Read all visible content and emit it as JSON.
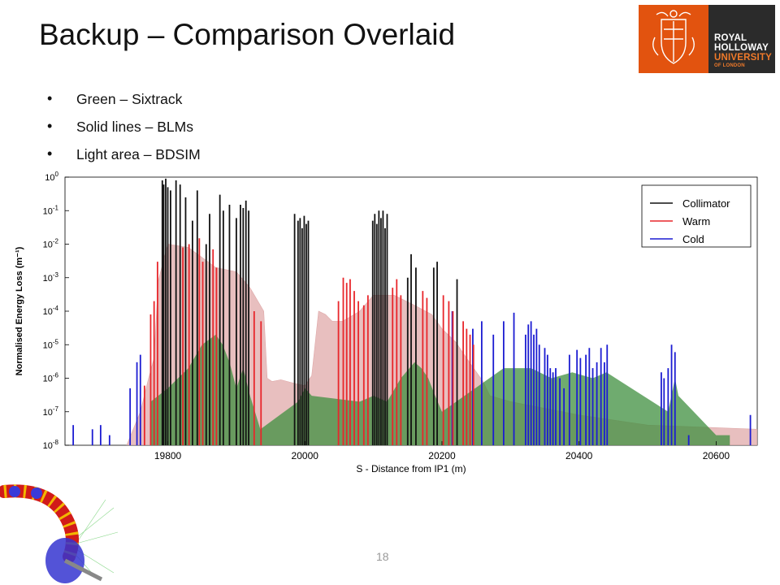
{
  "slide": {
    "title": "Backup – Comparison Overlaid",
    "bullets": [
      "Green – Sixtrack",
      "Solid lines – BLMs",
      "Light area – BDSIM"
    ],
    "page_number": "18"
  },
  "logo": {
    "lines": [
      "ROYAL",
      "HOLLOWAY",
      "UNIVERSITY",
      "OF LONDON"
    ],
    "colors": {
      "crest": "#e2530f",
      "text_bg": "#2b2b2b",
      "accent": "#f07a2a"
    }
  },
  "chart_data": {
    "type": "bar",
    "title": "",
    "xlabel": "S - Distance from IP1 (m)",
    "ylabel": "Normalised Energy Loss (m⁻¹)",
    "xlim": [
      19650,
      20660
    ],
    "ylim": [
      1e-08,
      1
    ],
    "yscale": "log",
    "xticks": [
      19800,
      20000,
      20200,
      20400,
      20600
    ],
    "yticks": [
      {
        "exp": 0,
        "label": "10",
        "sup": "0"
      },
      {
        "exp": -1,
        "label": "10",
        "sup": "-1"
      },
      {
        "exp": -2,
        "label": "10",
        "sup": "-2"
      },
      {
        "exp": -3,
        "label": "10",
        "sup": "-3"
      },
      {
        "exp": -4,
        "label": "10",
        "sup": "-4"
      },
      {
        "exp": -5,
        "label": "10",
        "sup": "-5"
      },
      {
        "exp": -6,
        "label": "10",
        "sup": "-6"
      },
      {
        "exp": -7,
        "label": "10",
        "sup": "-7"
      },
      {
        "exp": -8,
        "label": "10",
        "sup": "-8"
      }
    ],
    "legend_position": "top-right",
    "legend": [
      {
        "name": "Collimator",
        "color": "#111111"
      },
      {
        "name": "Warm",
        "color": "#e8262b"
      },
      {
        "name": "Cold",
        "color": "#1c1cd2"
      }
    ],
    "colors": {
      "bdsim_area": "#e5b4b4",
      "bdsim_area_cold": "#aac8ef",
      "sixtrack": "#3f8f3f"
    },
    "series": [
      {
        "name": "Collimator",
        "x": [
          19792,
          19794,
          19797,
          19800,
          19804,
          19812,
          19818,
          19826,
          19836,
          19843,
          19856,
          19861,
          19876,
          19881,
          19890,
          19900,
          19906,
          19910,
          19914,
          19918,
          19985,
          19990,
          19993,
          19996,
          19999,
          20002,
          20005,
          20099,
          20102,
          20105,
          20108,
          20111,
          20114,
          20117,
          20120,
          20150,
          20155,
          20162,
          20188,
          20193,
          20222
        ],
        "values": [
          0.8,
          0.6,
          0.9,
          0.5,
          0.4,
          0.8,
          0.6,
          0.25,
          0.05,
          0.4,
          0.01,
          0.08,
          0.3,
          0.1,
          0.15,
          0.06,
          0.15,
          0.12,
          0.2,
          0.1,
          0.08,
          0.05,
          0.06,
          0.03,
          0.07,
          0.04,
          0.05,
          0.05,
          0.08,
          0.04,
          0.1,
          0.06,
          0.1,
          0.03,
          0.08,
          0.001,
          0.005,
          0.002,
          0.002,
          0.003,
          0.0009
        ]
      },
      {
        "name": "Warm",
        "x": [
          19766,
          19775,
          19780,
          19785,
          19822,
          19831,
          19846,
          19851,
          19866,
          19871,
          19926,
          19936,
          20049,
          20056,
          20061,
          20066,
          20072,
          20078,
          20086,
          20092,
          20128,
          20134,
          20140,
          20172,
          20178,
          20202,
          20210,
          20216,
          20231,
          20236,
          20241,
          20246
        ],
        "values": [
          6e-07,
          8e-05,
          0.0002,
          0.003,
          0.008,
          0.01,
          0.015,
          0.003,
          0.007,
          0.002,
          0.0001,
          5e-05,
          0.0002,
          0.001,
          0.0007,
          0.0009,
          0.0004,
          0.0002,
          0.00015,
          0.0003,
          0.0005,
          0.0009,
          0.0003,
          0.0004,
          0.00025,
          0.0003,
          0.0002,
          0.0001,
          5e-05,
          3e-05,
          2e-05,
          1e-05
        ]
      },
      {
        "name": "Cold",
        "x": [
          19662,
          19690,
          19702,
          19715,
          19745,
          19755,
          19760,
          20215,
          20245,
          20258,
          20275,
          20290,
          20305,
          20322,
          20326,
          20330,
          20334,
          20338,
          20342,
          20350,
          20354,
          20358,
          20362,
          20366,
          20372,
          20378,
          20386,
          20397,
          20402,
          20410,
          20415,
          20420,
          20426,
          20432,
          20437,
          20441,
          20520,
          20524,
          20530,
          20535,
          20540,
          20560,
          20650
        ],
        "values": [
          4e-08,
          3e-08,
          4e-08,
          2e-08,
          5e-07,
          3e-06,
          5e-06,
          0.0001,
          3e-05,
          5e-05,
          2e-05,
          5e-05,
          9e-05,
          2e-05,
          4e-05,
          5e-05,
          2e-05,
          3e-05,
          1e-05,
          8e-06,
          5e-06,
          2e-06,
          1.5e-06,
          2e-06,
          1e-06,
          5e-07,
          5e-06,
          7e-06,
          4e-06,
          5e-06,
          8e-06,
          2e-06,
          3e-06,
          8e-06,
          3e-06,
          1e-05,
          1.5e-06,
          1e-06,
          2e-06,
          1e-05,
          6e-06,
          2e-08,
          8e-08
        ]
      },
      {
        "name": "BDSIM",
        "x": [
          19740,
          19760,
          19772,
          19780,
          19786,
          19800,
          19830,
          19870,
          19900,
          19920,
          19940,
          19945,
          19952,
          19965,
          19985,
          20000,
          20010,
          20020,
          20030,
          20040,
          20055,
          20080,
          20100,
          20130,
          20160,
          20185,
          20200,
          20220,
          20240,
          20260,
          20270,
          20300,
          20400,
          20500,
          20660
        ],
        "values": [
          1e-08,
          1e-07,
          1e-06,
          4e-06,
          0.0008,
          0.01,
          0.008,
          0.002,
          0.0015,
          0.0005,
          0.0001,
          1e-06,
          8e-07,
          9e-07,
          7e-07,
          6e-07,
          1.2e-06,
          0.0001,
          8e-05,
          5e-05,
          5e-05,
          0.0001,
          0.0003,
          0.0003,
          0.00015,
          8e-05,
          3e-05,
          1.2e-05,
          3e-06,
          8e-07,
          3e-07,
          2e-07,
          8e-08,
          4e-08,
          3e-08
        ]
      },
      {
        "name": "Sixtrack",
        "x": [
          19775,
          19800,
          19830,
          19850,
          19870,
          19880,
          19890,
          19900,
          19910,
          19920,
          19935,
          19990,
          20000,
          20010,
          20080,
          20100,
          20120,
          20140,
          20160,
          20170,
          20180,
          20190,
          20200,
          20290,
          20300,
          20330,
          20360,
          20390,
          20420,
          20440,
          20530,
          20540,
          20545,
          20600,
          20620
        ],
        "values": [
          2e-07,
          5e-07,
          2e-06,
          1e-05,
          2e-05,
          1e-05,
          3e-06,
          5e-07,
          2e-06,
          3e-07,
          3e-08,
          2e-07,
          5e-07,
          3e-07,
          2e-07,
          3e-07,
          2e-07,
          1e-06,
          3e-06,
          2e-06,
          1e-06,
          3e-07,
          1e-07,
          2e-06,
          2e-06,
          2e-06,
          1e-06,
          1.5e-06,
          1e-06,
          1.5e-06,
          1e-07,
          1e-06,
          3e-07,
          2e-08,
          2e-08
        ]
      }
    ]
  }
}
